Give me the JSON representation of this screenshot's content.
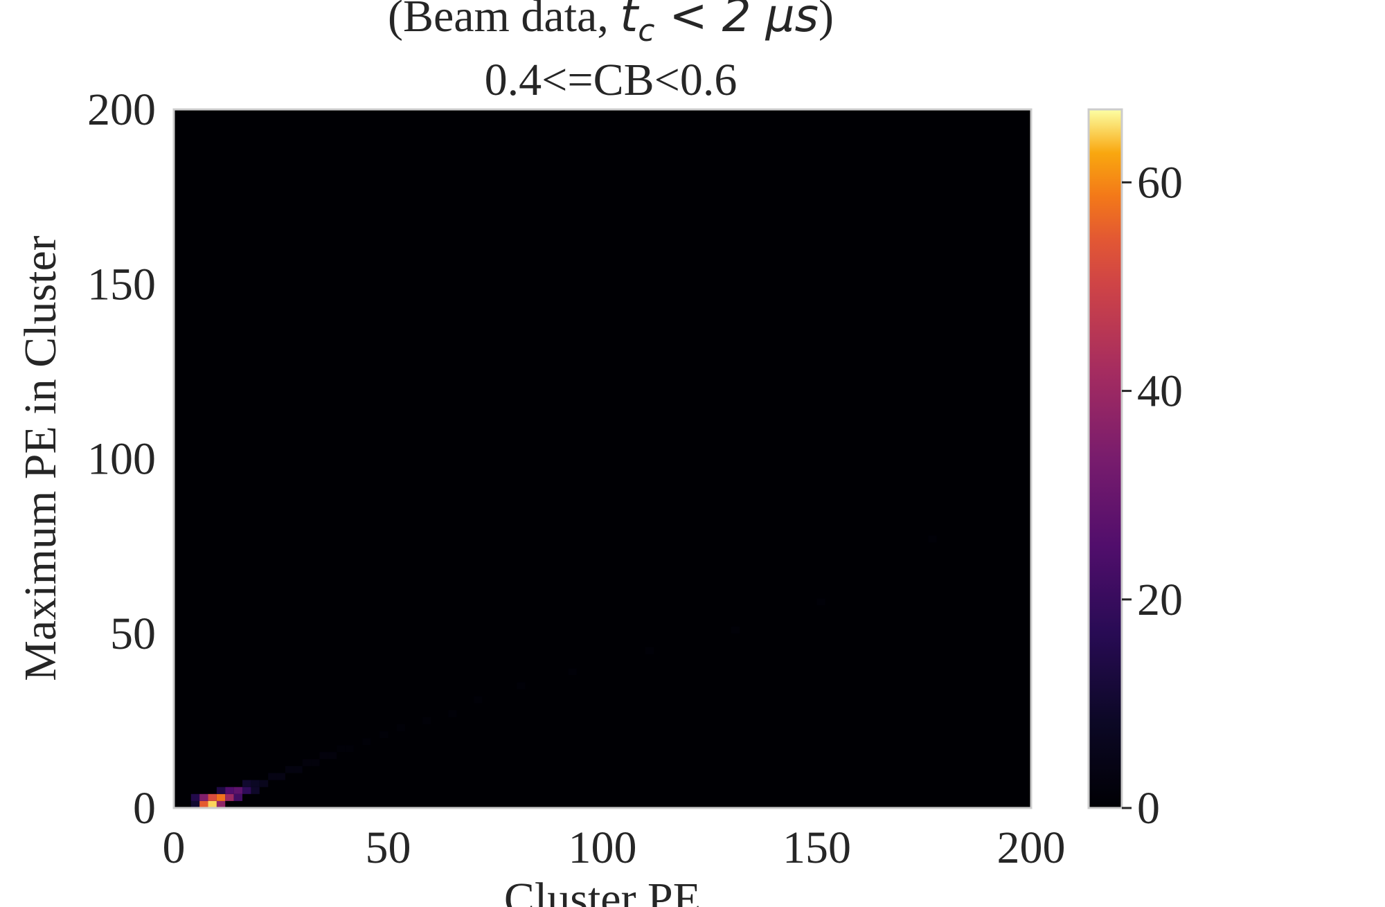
{
  "chart_data": {
    "type": "heatmap",
    "title_line1": "(Beam data, ",
    "title_math_var": "t",
    "title_math_sub": "c",
    "title_math_rest": " < 2 μs",
    "title_close": ")",
    "title_line2": "0.4<=CB<0.6",
    "xlabel": "Cluster PE",
    "ylabel": "Maximum PE in Cluster",
    "xlim": [
      0,
      200
    ],
    "ylim": [
      0,
      200
    ],
    "xticks": [
      0,
      50,
      100,
      150,
      200
    ],
    "yticks": [
      0,
      50,
      100,
      150,
      200
    ],
    "bin_width": 2,
    "colorbar": {
      "colormap": "inferno",
      "vmin": 0,
      "vmax": 67,
      "ticks": [
        0,
        20,
        40,
        60
      ]
    },
    "bins": [
      {
        "x": 4,
        "y": 0,
        "v": 10
      },
      {
        "x": 4,
        "y": 2,
        "v": 15
      },
      {
        "x": 6,
        "y": 0,
        "v": 55
      },
      {
        "x": 6,
        "y": 2,
        "v": 35
      },
      {
        "x": 8,
        "y": 0,
        "v": 65
      },
      {
        "x": 8,
        "y": 2,
        "v": 52
      },
      {
        "x": 10,
        "y": 0,
        "v": 38
      },
      {
        "x": 10,
        "y": 2,
        "v": 58
      },
      {
        "x": 10,
        "y": 4,
        "v": 14
      },
      {
        "x": 12,
        "y": 2,
        "v": 40
      },
      {
        "x": 12,
        "y": 4,
        "v": 25
      },
      {
        "x": 14,
        "y": 2,
        "v": 22
      },
      {
        "x": 14,
        "y": 4,
        "v": 28
      },
      {
        "x": 16,
        "y": 4,
        "v": 18
      },
      {
        "x": 16,
        "y": 6,
        "v": 10
      },
      {
        "x": 18,
        "y": 4,
        "v": 9
      },
      {
        "x": 18,
        "y": 6,
        "v": 8
      },
      {
        "x": 20,
        "y": 6,
        "v": 6
      },
      {
        "x": 22,
        "y": 8,
        "v": 4
      },
      {
        "x": 24,
        "y": 8,
        "v": 4
      },
      {
        "x": 26,
        "y": 10,
        "v": 3
      },
      {
        "x": 28,
        "y": 10,
        "v": 3
      },
      {
        "x": 30,
        "y": 12,
        "v": 2
      },
      {
        "x": 32,
        "y": 12,
        "v": 2
      },
      {
        "x": 34,
        "y": 14,
        "v": 2
      },
      {
        "x": 36,
        "y": 14,
        "v": 2
      },
      {
        "x": 38,
        "y": 16,
        "v": 1
      },
      {
        "x": 40,
        "y": 16,
        "v": 1
      },
      {
        "x": 44,
        "y": 18,
        "v": 1
      },
      {
        "x": 48,
        "y": 20,
        "v": 1
      },
      {
        "x": 52,
        "y": 22,
        "v": 1
      },
      {
        "x": 58,
        "y": 24,
        "v": 1
      },
      {
        "x": 64,
        "y": 26,
        "v": 1
      },
      {
        "x": 70,
        "y": 30,
        "v": 1
      },
      {
        "x": 80,
        "y": 34,
        "v": 1
      },
      {
        "x": 92,
        "y": 38,
        "v": 1
      },
      {
        "x": 110,
        "y": 44,
        "v": 1
      },
      {
        "x": 130,
        "y": 50,
        "v": 1
      },
      {
        "x": 150,
        "y": 58,
        "v": 1
      },
      {
        "x": 176,
        "y": 76,
        "v": 1
      }
    ]
  }
}
